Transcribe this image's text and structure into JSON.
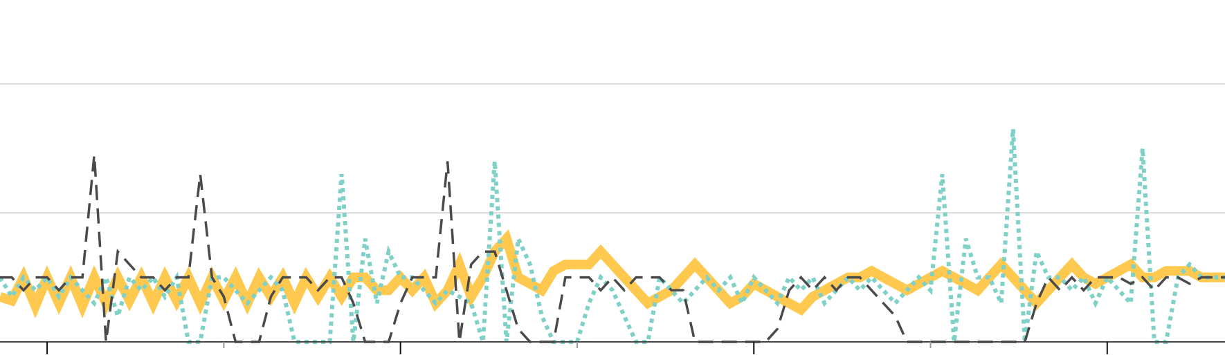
{
  "chart_data": {
    "type": "line",
    "title": "",
    "xlabel": "",
    "ylabel": "",
    "xlim": [
      0,
      104
    ],
    "ylim": [
      0,
      2.65
    ],
    "grid": true,
    "legend": "none",
    "x_major_ticks": [
      4,
      34,
      64,
      94
    ],
    "x_minor_ticks": [
      19,
      49,
      79
    ],
    "y_gridlines": [
      1,
      2
    ],
    "series": [
      {
        "color": "#ffc94f",
        "style": "solid",
        "values": [
          0.35,
          0.32,
          0.5,
          0.28,
          0.5,
          0.3,
          0.5,
          0.28,
          0.5,
          0.3,
          0.5,
          0.32,
          0.5,
          0.3,
          0.5,
          0.32,
          0.5,
          0.3,
          0.5,
          0.32,
          0.5,
          0.3,
          0.5,
          0.35,
          0.5,
          0.3,
          0.5,
          0.35,
          0.5,
          0.35,
          0.5,
          0.5,
          0.4,
          0.4,
          0.5,
          0.4,
          0.5,
          0.3,
          0.4,
          0.6,
          0.35,
          0.5,
          0.7,
          0.8,
          0.5,
          0.45,
          0.4,
          0.55,
          0.6,
          0.6,
          0.6,
          0.7,
          0.6,
          0.5,
          0.4,
          0.3,
          0.35,
          0.4,
          0.5,
          0.6,
          0.5,
          0.4,
          0.3,
          0.35,
          0.45,
          0.4,
          0.35,
          0.3,
          0.25,
          0.35,
          0.4,
          0.45,
          0.5,
          0.5,
          0.55,
          0.5,
          0.45,
          0.4,
          0.45,
          0.5,
          0.55,
          0.5,
          0.45,
          0.4,
          0.5,
          0.6,
          0.5,
          0.4,
          0.3,
          0.4,
          0.5,
          0.6,
          0.5,
          0.45,
          0.5,
          0.55,
          0.6,
          0.5,
          0.5,
          0.55,
          0.55,
          0.55,
          0.5,
          0.5,
          0.5
        ]
      },
      {
        "color": "#7fd0c7",
        "style": "dotted",
        "values": [
          0.5,
          0.35,
          0.5,
          0.4,
          0.5,
          0.35,
          0.5,
          0.4,
          0.3,
          0.5,
          0.2,
          0.5,
          0.4,
          0.5,
          0.35,
          0.5,
          0.0,
          0.0,
          0.5,
          0.5,
          0.4,
          0.3,
          0.4,
          0.5,
          0.4,
          0.0,
          0.0,
          0.0,
          0.0,
          1.3,
          0.0,
          0.8,
          0.3,
          0.7,
          0.5,
          0.5,
          0.4,
          0.3,
          0.4,
          0.35,
          0.3,
          0.0,
          1.4,
          0.0,
          0.8,
          0.6,
          0.2,
          0.0,
          0.0,
          0.0,
          0.3,
          0.5,
          0.4,
          0.2,
          0.0,
          0.0,
          0.5,
          0.4,
          0.3,
          0.4,
          0.5,
          0.4,
          0.5,
          0.3,
          0.5,
          0.4,
          0.3,
          0.5,
          0.4,
          0.5,
          0.3,
          0.4,
          0.5,
          0.4,
          0.5,
          0.4,
          0.3,
          0.4,
          0.5,
          0.4,
          1.3,
          0.0,
          0.8,
          0.5,
          0.5,
          0.3,
          1.65,
          0.0,
          0.7,
          0.5,
          0.5,
          0.4,
          0.5,
          0.3,
          0.5,
          0.4,
          0.3,
          1.5,
          0.0,
          0.0,
          0.5,
          0.6,
          0.5,
          0.5,
          0.5
        ]
      },
      {
        "color": "#4a4a4a",
        "style": "dashed",
        "values": [
          0.5,
          0.5,
          0.4,
          0.5,
          0.5,
          0.4,
          0.5,
          0.5,
          1.45,
          0.0,
          0.7,
          0.6,
          0.5,
          0.5,
          0.4,
          0.5,
          0.5,
          1.3,
          0.5,
          0.35,
          0.0,
          0.0,
          0.0,
          0.35,
          0.5,
          0.5,
          0.5,
          0.4,
          0.5,
          0.5,
          0.3,
          0.0,
          0.0,
          0.0,
          0.3,
          0.5,
          0.5,
          0.5,
          1.4,
          0.0,
          0.6,
          0.7,
          0.7,
          0.4,
          0.1,
          0.0,
          0.0,
          0.0,
          0.5,
          0.5,
          0.5,
          0.4,
          0.5,
          0.4,
          0.5,
          0.5,
          0.5,
          0.4,
          0.4,
          0.0,
          0.0,
          0.0,
          0.0,
          0.0,
          0.0,
          0.0,
          0.1,
          0.4,
          0.5,
          0.4,
          0.5,
          0.4,
          0.5,
          0.5,
          0.4,
          0.3,
          0.2,
          0.0,
          0.0,
          0.0,
          0.0,
          0.0,
          0.0,
          0.0,
          0.0,
          0.0,
          0.0,
          0.0,
          0.3,
          0.5,
          0.4,
          0.5,
          0.4,
          0.5,
          0.5,
          0.5,
          0.45,
          0.5,
          0.4,
          0.5,
          0.5,
          0.45,
          0.5,
          0.5,
          0.5
        ]
      }
    ]
  }
}
